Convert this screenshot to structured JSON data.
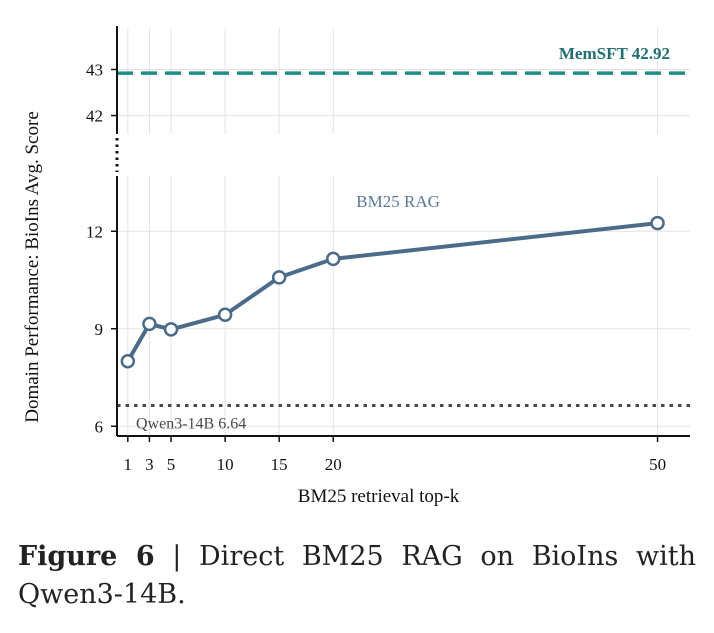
{
  "chart_data": {
    "type": "line",
    "xlabel": "BM25 retrieval top-k",
    "ylabel": "Domain Performance: BioIns Avg. Score",
    "x_ticks": [
      1,
      3,
      5,
      10,
      15,
      20,
      50
    ],
    "x_ticks_label": [
      "1",
      "3",
      "5",
      "10",
      "15",
      "20",
      "50"
    ],
    "y_ticks_lower": [
      6,
      9,
      12
    ],
    "y_ticks_lower_label": [
      "6",
      "9",
      "12"
    ],
    "y_ticks_upper": [
      42,
      43
    ],
    "y_ticks_upper_label": [
      "42",
      "43"
    ],
    "ylim_lower": [
      5.7,
      13.7
    ],
    "ylim_upper": [
      41.6,
      43.9
    ],
    "xlim": [
      0,
      53
    ],
    "broken_y_axis": true,
    "grid": true,
    "series": [
      {
        "label": "BM25 RAG",
        "color": "#4a6b8a",
        "x": [
          1,
          3,
          5,
          10,
          15,
          20,
          50
        ],
        "y": [
          8.0,
          9.15,
          8.98,
          9.43,
          10.58,
          11.15,
          12.25
        ]
      }
    ],
    "reference_lines": [
      {
        "label": "MemSFT 42.92",
        "value": 42.92,
        "style": "dashed",
        "color": "#1a9088"
      },
      {
        "label": "Qwen3-14B 6.64",
        "value": 6.64,
        "style": "dotted",
        "color": "#4a4a4a"
      }
    ]
  },
  "caption": {
    "prefix": "Figure 6",
    "separator": " | ",
    "text": "Direct BM25 RAG on BioIns with Qwen3-14B."
  }
}
